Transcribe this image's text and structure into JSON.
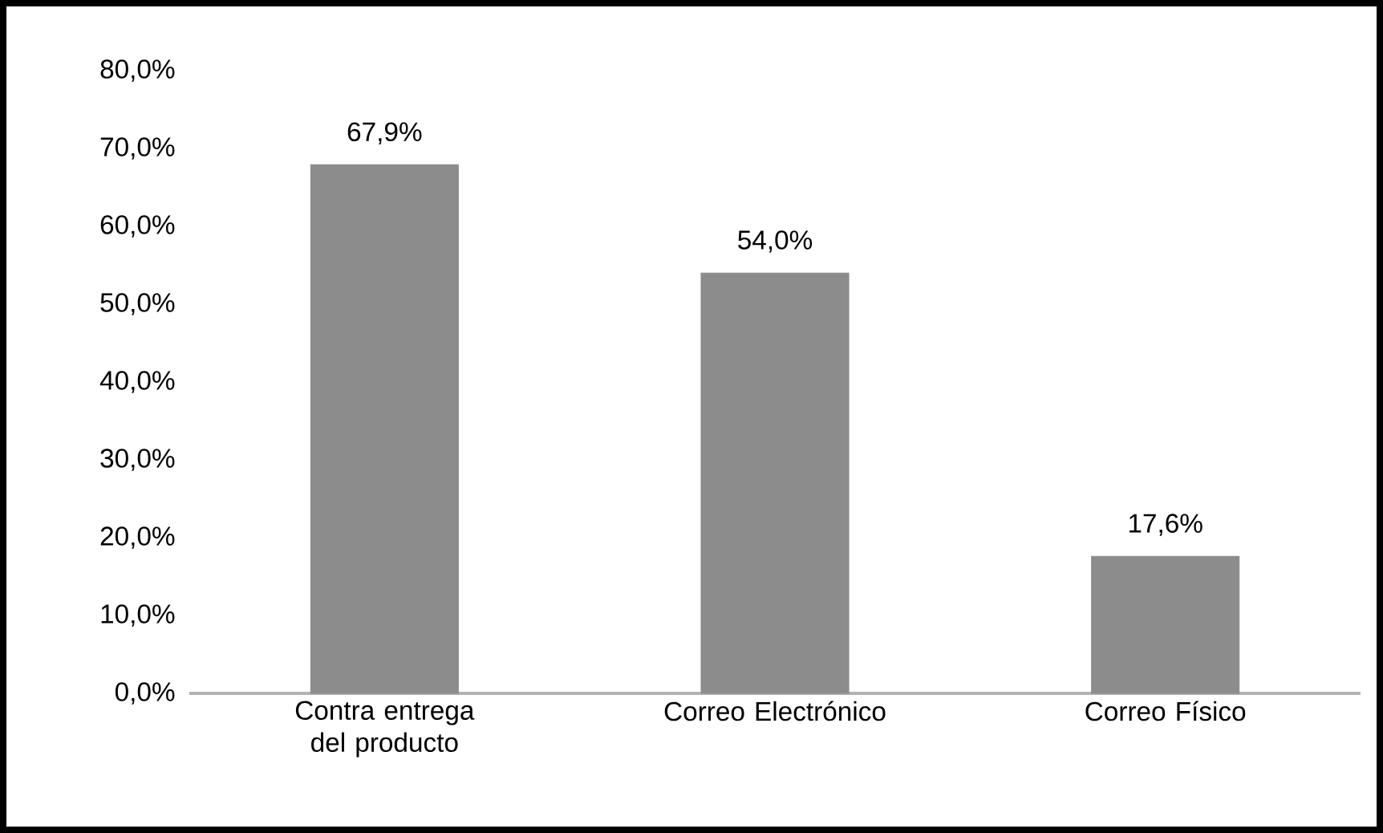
{
  "chart_data": {
    "type": "bar",
    "categories": [
      "Contra entrega del producto",
      "Correo Electrónico",
      "Correo Físico"
    ],
    "values": [
      67.9,
      54.0,
      17.6
    ],
    "value_labels": [
      "67,9%",
      "54,0%",
      "17,6%"
    ],
    "color": "#8c8c8c",
    "ylim": [
      0,
      80
    ],
    "yticks": [
      {
        "value": 0,
        "label": "0,0%"
      },
      {
        "value": 10,
        "label": "10,0%"
      },
      {
        "value": 20,
        "label": "20,0%"
      },
      {
        "value": 30,
        "label": "30,0%"
      },
      {
        "value": 40,
        "label": "40,0%"
      },
      {
        "value": 50,
        "label": "50,0%"
      },
      {
        "value": 60,
        "label": "60,0%"
      },
      {
        "value": 70,
        "label": "70,0%"
      },
      {
        "value": 80,
        "label": "80,0%"
      }
    ]
  }
}
